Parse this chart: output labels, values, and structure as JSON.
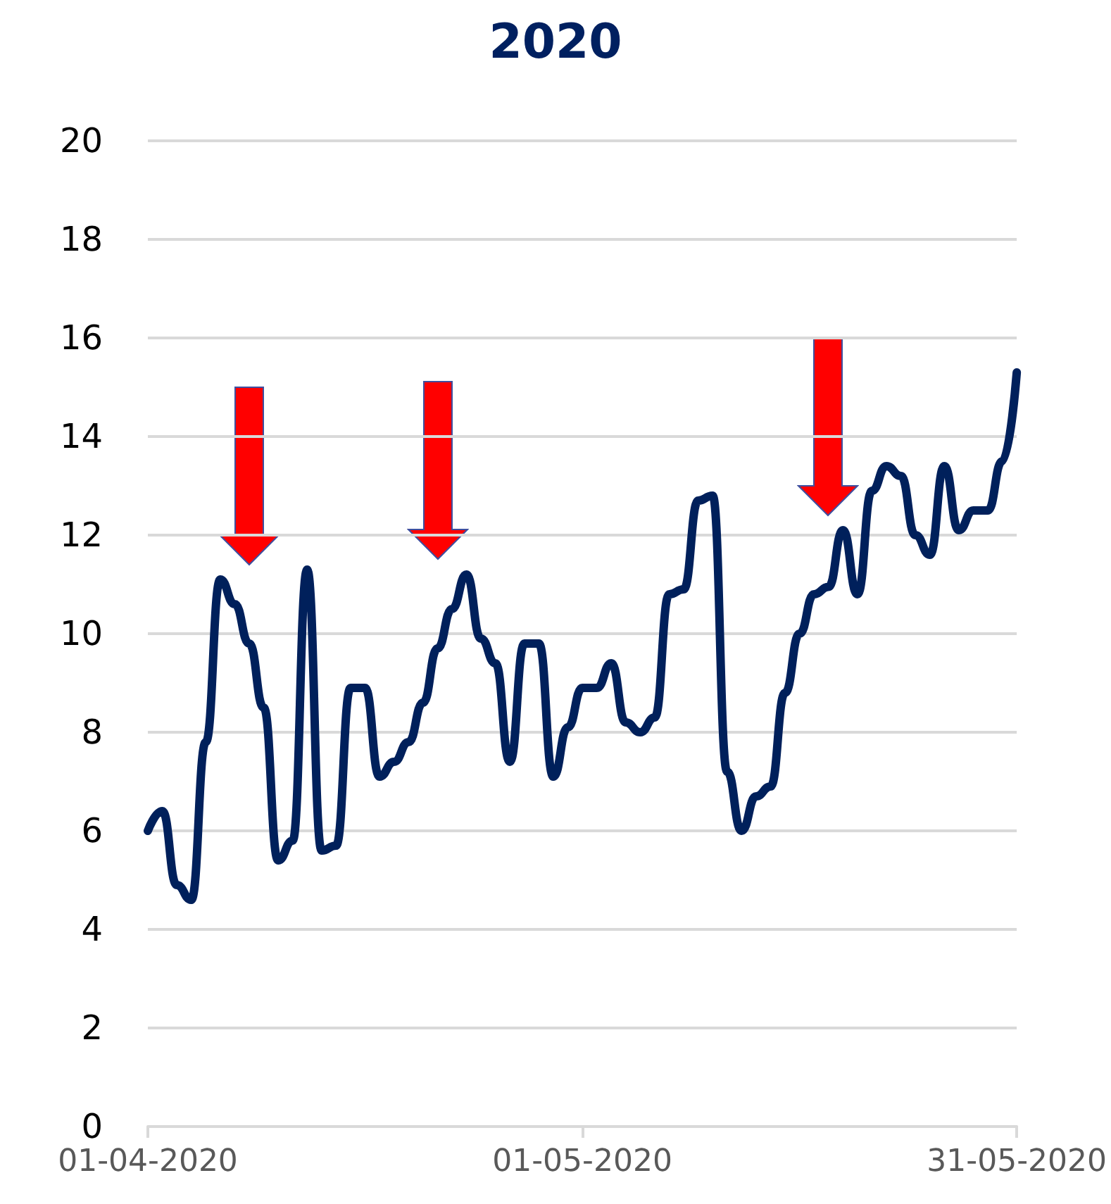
{
  "chart_data": {
    "type": "line",
    "title": "2020",
    "x": [
      "2020-04-01",
      "2020-04-02",
      "2020-04-03",
      "2020-04-04",
      "2020-04-05",
      "2020-04-06",
      "2020-04-07",
      "2020-04-08",
      "2020-04-09",
      "2020-04-10",
      "2020-04-11",
      "2020-04-12",
      "2020-04-13",
      "2020-04-14",
      "2020-04-15",
      "2020-04-16",
      "2020-04-17",
      "2020-04-18",
      "2020-04-19",
      "2020-04-20",
      "2020-04-21",
      "2020-04-22",
      "2020-04-23",
      "2020-04-24",
      "2020-04-25",
      "2020-04-26",
      "2020-04-27",
      "2020-04-28",
      "2020-04-29",
      "2020-04-30",
      "2020-05-01",
      "2020-05-02",
      "2020-05-03",
      "2020-05-04",
      "2020-05-05",
      "2020-05-06",
      "2020-05-07",
      "2020-05-08",
      "2020-05-09",
      "2020-05-10",
      "2020-05-11",
      "2020-05-12",
      "2020-05-13",
      "2020-05-14",
      "2020-05-15",
      "2020-05-16",
      "2020-05-17",
      "2020-05-18",
      "2020-05-19",
      "2020-05-20",
      "2020-05-21",
      "2020-05-22",
      "2020-05-23",
      "2020-05-24",
      "2020-05-25",
      "2020-05-26",
      "2020-05-27",
      "2020-05-28",
      "2020-05-29",
      "2020-05-30",
      "2020-05-31"
    ],
    "series": [
      {
        "color": "#00205b",
        "values": [
          6.0,
          6.4,
          4.9,
          4.6,
          7.8,
          11.1,
          10.6,
          9.8,
          8.5,
          5.4,
          5.8,
          11.3,
          5.6,
          5.7,
          8.9,
          8.9,
          7.1,
          7.4,
          7.8,
          8.6,
          9.7,
          10.5,
          11.2,
          9.9,
          9.4,
          7.4,
          9.8,
          9.8,
          7.1,
          8.1,
          8.9,
          8.9,
          9.4,
          8.2,
          8.0,
          8.3,
          10.8,
          10.9,
          12.7,
          12.8,
          7.2,
          6.0,
          6.7,
          6.9,
          8.8,
          10.0,
          10.8,
          10.95,
          12.1,
          10.8,
          12.9,
          13.4,
          13.2,
          12.0,
          11.6,
          13.4,
          12.1,
          12.5,
          12.5,
          13.5,
          15.3
        ]
      }
    ],
    "xlim": [
      "2020-04-01",
      "2020-05-31"
    ],
    "xticks": [
      {
        "value": "2020-04-01",
        "label": "01-04-2020"
      },
      {
        "value": "2020-05-01",
        "label": "01-05-2020"
      },
      {
        "value": "2020-05-31",
        "label": "31-05-2020"
      }
    ],
    "ylim": [
      0,
      20
    ],
    "yticks": [
      0,
      2,
      4,
      6,
      8,
      10,
      12,
      14,
      16,
      18,
      20
    ],
    "grid": "y",
    "marker": "none",
    "line_style": "solid"
  }
}
